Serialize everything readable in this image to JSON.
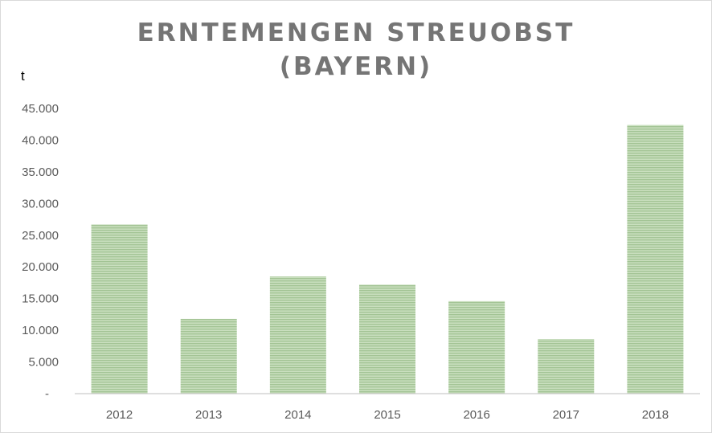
{
  "chart_data": {
    "type": "bar",
    "title_lines": [
      "ERNTEMENGEN STREUOBST",
      "(BAYERN)"
    ],
    "ylabel": "t",
    "categories": [
      "2012",
      "2013",
      "2014",
      "2015",
      "2016",
      "2017",
      "2018"
    ],
    "values": [
      26700,
      11800,
      18500,
      17200,
      14600,
      8600,
      42400
    ],
    "ylim": [
      0,
      45000
    ],
    "yticks": [
      0,
      5000,
      10000,
      15000,
      20000,
      25000,
      30000,
      35000,
      40000,
      45000
    ],
    "ytick_labels": [
      "-",
      "5.000",
      "10.000",
      "15.000",
      "20.000",
      "25.000",
      "30.000",
      "35.000",
      "40.000",
      "45.000"
    ],
    "grid": false,
    "bar_color": "#a9d18e",
    "bar_stripe_color": "#c5e0b4"
  }
}
